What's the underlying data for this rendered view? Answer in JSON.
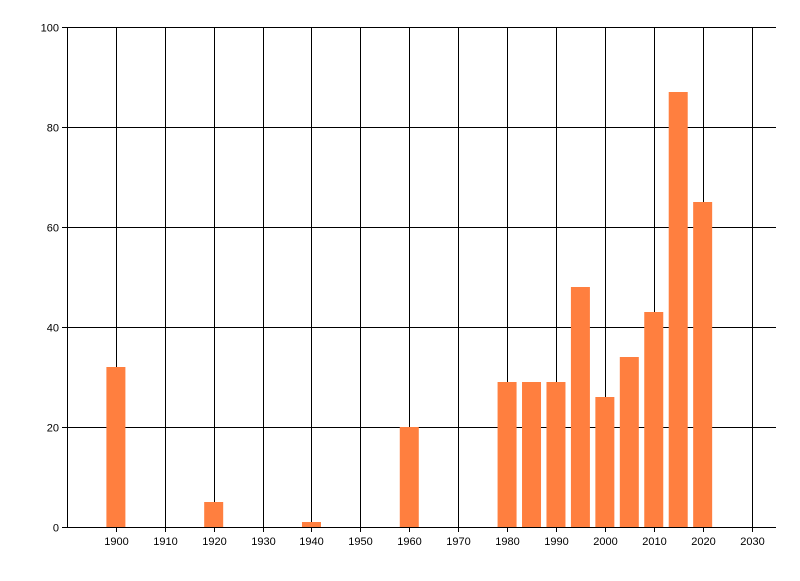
{
  "chart_data": {
    "type": "bar",
    "title": "",
    "xlabel": "",
    "ylabel": "",
    "x": [
      1900,
      1920,
      1940,
      1960,
      1980,
      1985,
      1990,
      1995,
      2000,
      2005,
      2010,
      2015,
      2020
    ],
    "values": [
      32,
      5,
      1,
      20,
      29,
      29,
      29,
      48,
      26,
      34,
      43,
      87,
      65
    ],
    "xlim": [
      1890,
      2035
    ],
    "ylim": [
      0,
      100
    ],
    "x_ticks": [
      1900,
      1910,
      1920,
      1930,
      1940,
      1950,
      1960,
      1970,
      1980,
      1990,
      2000,
      2010,
      2020,
      2030
    ],
    "y_ticks": [
      0,
      20,
      40,
      60,
      80,
      100
    ],
    "grid": true,
    "bar_color": "#ff7f3f",
    "grid_color": "#000000"
  }
}
